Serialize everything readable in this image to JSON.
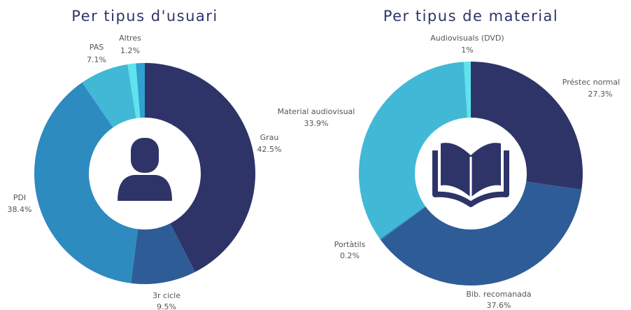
{
  "chart_data": [
    {
      "type": "donut",
      "title": "Per tipus d'usuari",
      "categories": [
        "Grau",
        "3r cicle",
        "PDI",
        "PAS",
        "Altres",
        null
      ],
      "values": [
        42.5,
        9.5,
        38.4,
        7.1,
        1.2,
        1.3
      ],
      "value_labels": [
        "42.5%",
        "9.5%",
        "38.4%",
        "7.1%",
        "1.2%",
        null
      ],
      "colors": [
        "#2e3468",
        "#2e5c96",
        "#2e8bbf",
        "#41b8d6",
        "#5fe3ec",
        "#2fa0cf"
      ]
    },
    {
      "type": "donut",
      "title": "Per tipus de material",
      "categories": [
        "Préstec normal",
        "Bib. recomanada",
        "Portàtils",
        "Material audiovisual",
        "Audiovisuals (DVD)"
      ],
      "values": [
        27.3,
        37.6,
        0.2,
        33.9,
        1
      ],
      "value_labels": [
        "27.3%",
        "37.6%",
        "0.2%",
        "33.9%",
        "1%"
      ],
      "colors": [
        "#2e3468",
        "#2e5c96",
        "#2e8bbf",
        "#41b8d6",
        "#5fe3ec"
      ]
    }
  ]
}
